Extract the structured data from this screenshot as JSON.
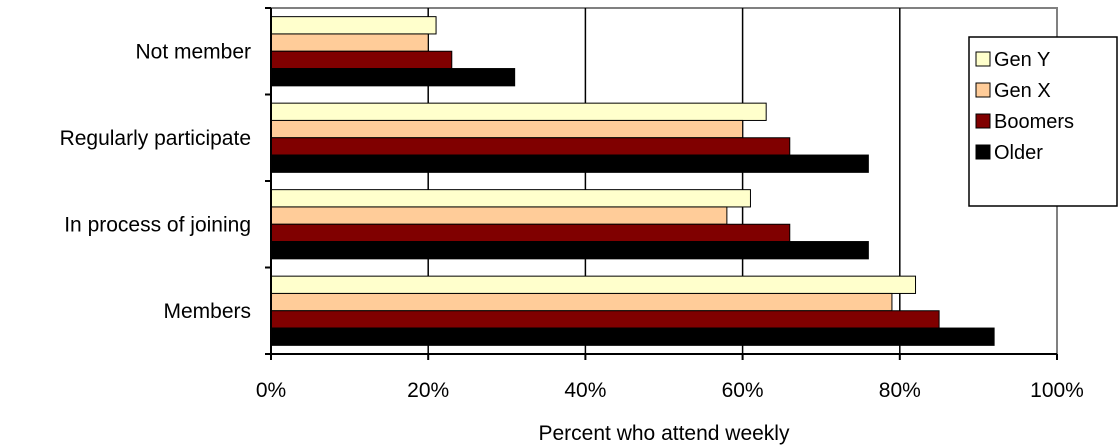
{
  "chart_data": {
    "type": "bar",
    "orientation": "horizontal",
    "categories": [
      "Not member",
      "Regularly participate",
      "In process of joining",
      "Members"
    ],
    "series": [
      {
        "name": "Gen Y",
        "color": "#FFFFCC",
        "values": [
          21,
          63,
          61,
          82
        ]
      },
      {
        "name": "Gen X",
        "color": "#FFCC99",
        "values": [
          20,
          60,
          58,
          79
        ]
      },
      {
        "name": "Boomers",
        "color": "#800000",
        "values": [
          23,
          66,
          66,
          85
        ]
      },
      {
        "name": "Older",
        "color": "#000000",
        "values": [
          31,
          76,
          76,
          92
        ]
      }
    ],
    "xlabel": "Percent who attend weekly",
    "ylabel": "",
    "title": "",
    "xlim": [
      0,
      100
    ],
    "x_ticks": [
      "0%",
      "20%",
      "40%",
      "60%",
      "80%",
      "100%"
    ],
    "grid": "vertical",
    "legend_position": "right"
  }
}
